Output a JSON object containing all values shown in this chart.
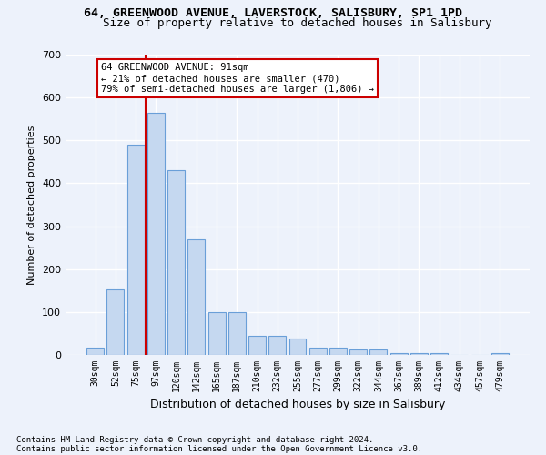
{
  "title1": "64, GREENWOOD AVENUE, LAVERSTOCK, SALISBURY, SP1 1PD",
  "title2": "Size of property relative to detached houses in Salisbury",
  "xlabel": "Distribution of detached houses by size in Salisbury",
  "ylabel": "Number of detached properties",
  "categories": [
    "30sqm",
    "52sqm",
    "75sqm",
    "97sqm",
    "120sqm",
    "142sqm",
    "165sqm",
    "187sqm",
    "210sqm",
    "232sqm",
    "255sqm",
    "277sqm",
    "299sqm",
    "322sqm",
    "344sqm",
    "367sqm",
    "389sqm",
    "412sqm",
    "434sqm",
    "457sqm",
    "479sqm"
  ],
  "values": [
    18,
    152,
    490,
    565,
    430,
    270,
    100,
    100,
    45,
    45,
    38,
    18,
    18,
    13,
    13,
    5,
    5,
    5,
    0,
    0,
    5
  ],
  "bar_color": "#c5d8f0",
  "bar_edge_color": "#6a9fd8",
  "vline_x": 2.5,
  "vline_color": "#cc0000",
  "annotation_line1": "64 GREENWOOD AVENUE: 91sqm",
  "annotation_line2": "← 21% of detached houses are smaller (470)",
  "annotation_line3": "79% of semi-detached houses are larger (1,806) →",
  "annotation_box_color": "#ffffff",
  "annotation_box_edge": "#cc0000",
  "background_color": "#edf2fb",
  "grid_color": "#ffffff",
  "footer1": "Contains HM Land Registry data © Crown copyright and database right 2024.",
  "footer2": "Contains public sector information licensed under the Open Government Licence v3.0.",
  "ylim": [
    0,
    700
  ],
  "yticks": [
    0,
    100,
    200,
    300,
    400,
    500,
    600,
    700
  ]
}
